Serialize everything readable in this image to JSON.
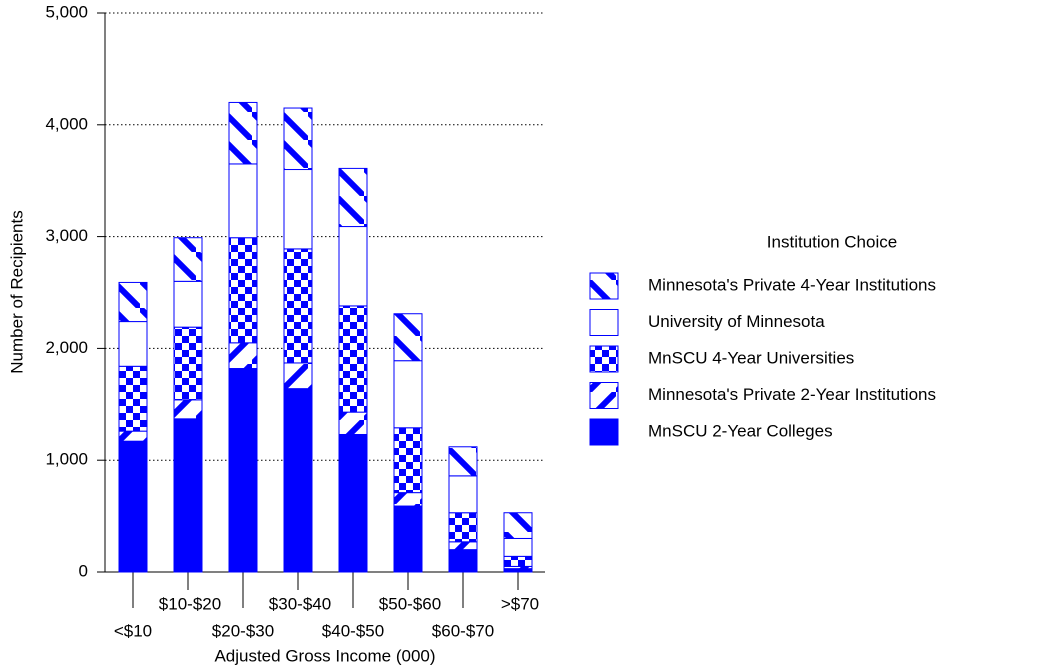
{
  "chart_data": {
    "type": "stacked_bar",
    "x_label": "Adjusted Gross Income (000)",
    "y_label": "Number of Recipients",
    "legend_title": "Institution Choice",
    "categories": [
      "<$10",
      "$10-$20",
      "$20-$30",
      "$30-$40",
      "$40-$50",
      "$50-$60",
      "$60-$70",
      ">$70"
    ],
    "series": [
      {
        "name": "MnSCU 2-Year Colleges",
        "color": "#0000ff",
        "values": [
          1170,
          1370,
          1820,
          1640,
          1230,
          590,
          200,
          30
        ]
      },
      {
        "name": "Minnesota's Private 2-Year Institutions",
        "color": "#0000ff",
        "values": [
          90,
          170,
          230,
          230,
          200,
          120,
          70,
          20
        ]
      },
      {
        "name": "MnSCU 4-Year Universities",
        "color": "#0000ff",
        "values": [
          580,
          650,
          940,
          1020,
          950,
          580,
          260,
          90
        ]
      },
      {
        "name": "University of Minnesota",
        "color": "#0000ff",
        "values": [
          400,
          410,
          660,
          710,
          710,
          600,
          330,
          160
        ]
      },
      {
        "name": "Minnesota's Private 4-Year Institutions",
        "color": "#0000ff",
        "values": [
          350,
          390,
          550,
          550,
          520,
          420,
          260,
          230
        ]
      }
    ],
    "ylim": [
      0,
      5000
    ],
    "yticks": [
      0,
      {
        "value": 1000,
        "label": "1,000"
      },
      {
        "value": 2000,
        "label": "2,000"
      },
      {
        "value": 3000,
        "label": "3,000"
      },
      {
        "value": 4000,
        "label": "4,000"
      },
      {
        "value": 5000,
        "label": "5,000"
      }
    ],
    "grid": true
  }
}
